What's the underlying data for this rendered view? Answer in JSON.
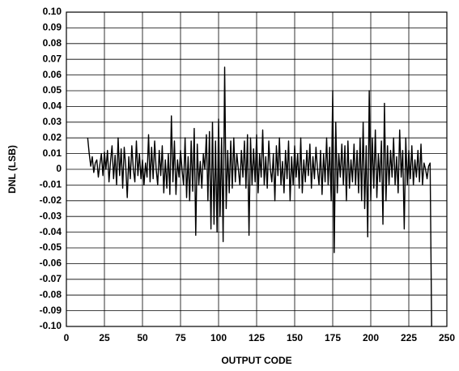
{
  "chart_data": {
    "type": "line",
    "x_label": "OUTPUT CODE",
    "y_label": "DNL (LSB)",
    "x": [
      14,
      15,
      16,
      17,
      18,
      19,
      20,
      21,
      22,
      23,
      24,
      25,
      26,
      27,
      28,
      29,
      30,
      31,
      32,
      33,
      34,
      35,
      36,
      37,
      38,
      39,
      40,
      41,
      42,
      43,
      44,
      45,
      46,
      47,
      48,
      49,
      50,
      51,
      52,
      53,
      54,
      55,
      56,
      57,
      58,
      59,
      60,
      61,
      62,
      63,
      64,
      65,
      66,
      67,
      68,
      69,
      70,
      71,
      72,
      73,
      74,
      75,
      76,
      77,
      78,
      79,
      80,
      81,
      82,
      83,
      84,
      85,
      86,
      87,
      88,
      89,
      90,
      91,
      92,
      93,
      94,
      95,
      96,
      97,
      98,
      99,
      100,
      101,
      102,
      103,
      104,
      105,
      106,
      107,
      108,
      109,
      110,
      111,
      112,
      113,
      114,
      115,
      116,
      117,
      118,
      119,
      120,
      121,
      122,
      123,
      124,
      125,
      126,
      127,
      128,
      129,
      130,
      131,
      132,
      133,
      134,
      135,
      136,
      137,
      138,
      139,
      140,
      141,
      142,
      143,
      144,
      145,
      146,
      147,
      148,
      149,
      150,
      151,
      152,
      153,
      154,
      155,
      156,
      157,
      158,
      159,
      160,
      161,
      162,
      163,
      164,
      165,
      166,
      167,
      168,
      169,
      170,
      171,
      172,
      173,
      174,
      175,
      176,
      177,
      178,
      179,
      180,
      181,
      182,
      183,
      184,
      185,
      186,
      187,
      188,
      189,
      190,
      191,
      192,
      193,
      194,
      195,
      196,
      197,
      198,
      199,
      200,
      201,
      202,
      203,
      204,
      205,
      206,
      207,
      208,
      209,
      210,
      211,
      212,
      213,
      214,
      215,
      216,
      217,
      218,
      219,
      220,
      221,
      222,
      223,
      224,
      225,
      226,
      227,
      228,
      229,
      230,
      231,
      232,
      233,
      234,
      235,
      236,
      237,
      238,
      239,
      240
    ],
    "values": [
      0.02,
      0.01,
      0.002,
      0.008,
      -0.002,
      0.004,
      0.006,
      -0.005,
      0.003,
      0.01,
      -0.004,
      0.011,
      0,
      0.012,
      -0.008,
      0.005,
      0.015,
      -0.006,
      0.009,
      -0.01,
      0.02,
      -0.004,
      0.013,
      -0.012,
      0.014,
      0.002,
      -0.018,
      0.008,
      -0.006,
      0.015,
      0,
      -0.008,
      0.018,
      -0.004,
      0.01,
      -0.006,
      0.006,
      -0.01,
      0.004,
      -0.005,
      0.022,
      -0.008,
      0.014,
      -0.006,
      0.018,
      0,
      -0.01,
      0.012,
      -0.004,
      0.015,
      -0.015,
      0.006,
      -0.012,
      0.01,
      -0.016,
      0.034,
      -0.008,
      0.018,
      -0.016,
      0.006,
      -0.005,
      0.012,
      0,
      -0.01,
      0.02,
      -0.018,
      0.008,
      -0.02,
      0.018,
      -0.014,
      0.026,
      -0.042,
      0.016,
      -0.01,
      0.005,
      -0.012,
      0.01,
      0,
      0.022,
      -0.02,
      0.024,
      -0.038,
      0.03,
      -0.035,
      0.018,
      -0.04,
      0.032,
      -0.03,
      0.02,
      -0.046,
      0.065,
      -0.025,
      0.012,
      -0.015,
      0.018,
      -0.012,
      0.02,
      -0.008,
      0.01,
      0,
      -0.01,
      0.012,
      -0.005,
      0.018,
      -0.012,
      0.022,
      -0.042,
      0.02,
      -0.01,
      0.013,
      -0.008,
      0.022,
      -0.015,
      0.01,
      -0.005,
      0.025,
      -0.01,
      0.008,
      -0.012,
      0.018,
      0,
      -0.008,
      0.01,
      -0.02,
      0.015,
      -0.004,
      0.02,
      -0.01,
      0.005,
      -0.015,
      0.012,
      -0.006,
      0.018,
      -0.02,
      0.008,
      -0.01,
      0.015,
      -0.005,
      0.01,
      -0.012,
      0.02,
      -0.015,
      0.006,
      -0.008,
      0.012,
      -0.004,
      0.016,
      -0.012,
      0.008,
      -0.006,
      0.014,
      0,
      -0.01,
      0.012,
      -0.016,
      0.01,
      -0.008,
      0.02,
      -0.01,
      0.014,
      -0.02,
      0.05,
      -0.053,
      0.03,
      -0.015,
      0.01,
      -0.005,
      0.016,
      -0.01,
      0.015,
      -0.02,
      0.018,
      -0.012,
      0.006,
      -0.008,
      0.016,
      -0.01,
      0.012,
      -0.015,
      0.02,
      -0.02,
      0.03,
      -0.025,
      0.015,
      -0.043,
      0.05,
      -0.02,
      0.02,
      -0.012,
      0.025,
      -0.018,
      0.01,
      -0.008,
      0.018,
      -0.035,
      0.042,
      -0.02,
      0.015,
      -0.01,
      0.012,
      -0.005,
      0.02,
      -0.01,
      0.008,
      -0.015,
      0.025,
      -0.005,
      0.012,
      -0.038,
      0.02,
      -0.01,
      0.012,
      -0.006,
      0.015,
      -0.01,
      0.006,
      -0.005,
      0.012,
      -0.008,
      0.016,
      -0.01,
      0.004,
      0,
      -0.006,
      0.002,
      0.004,
      -0.1
    ],
    "color": "#000000",
    "xlim": [
      0,
      250
    ],
    "xticks": [
      0,
      25,
      50,
      75,
      100,
      125,
      150,
      175,
      200,
      225,
      250
    ],
    "ylim": [
      -0.1,
      0.1
    ],
    "yticks": [
      {
        "value": 0.1,
        "label": "0.10"
      },
      0.09,
      0.08,
      0.07,
      0.06,
      0.05,
      0.04,
      0.03,
      0.02,
      0.01,
      0,
      -0.01,
      -0.02,
      -0.03,
      -0.04,
      -0.05,
      -0.06,
      -0.07,
      -0.08,
      -0.09,
      {
        "value": -0.1,
        "label": "-0.10"
      }
    ],
    "grid": true
  }
}
